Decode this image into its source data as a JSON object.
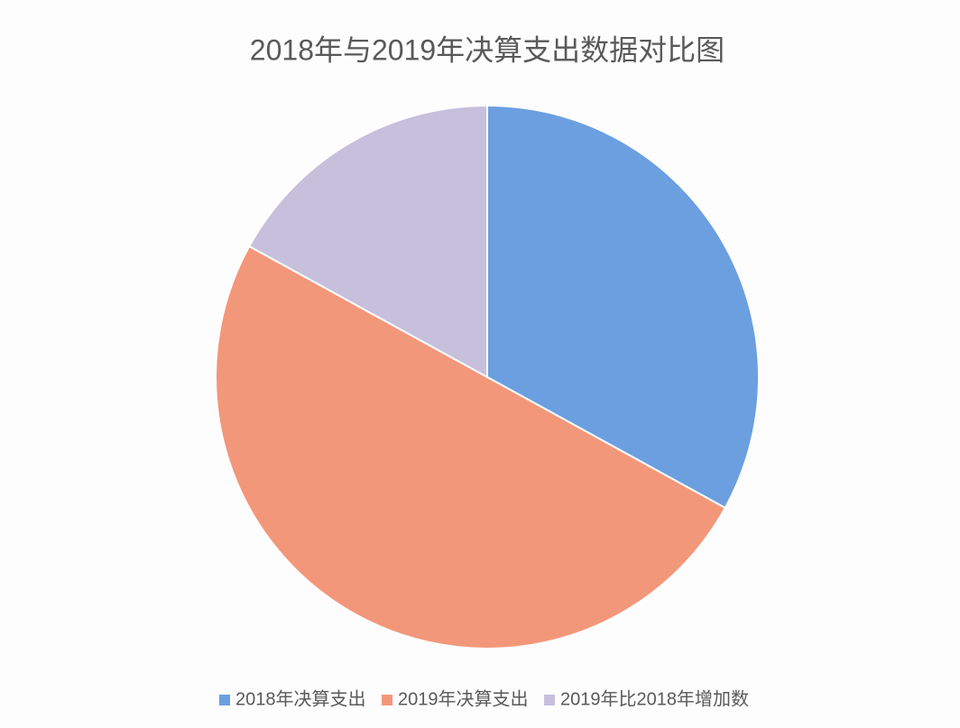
{
  "chart_data": {
    "type": "pie",
    "title": "2018年与2019年决算支出数据对比图",
    "categories": [
      "2018年决算支出",
      "2019年决算支出",
      "2019年比2018年增加数"
    ],
    "values": [
      33,
      50,
      17
    ],
    "colors": [
      "#6b9fe0",
      "#f3977a",
      "#c6c0dd"
    ],
    "legend": "bottom"
  }
}
